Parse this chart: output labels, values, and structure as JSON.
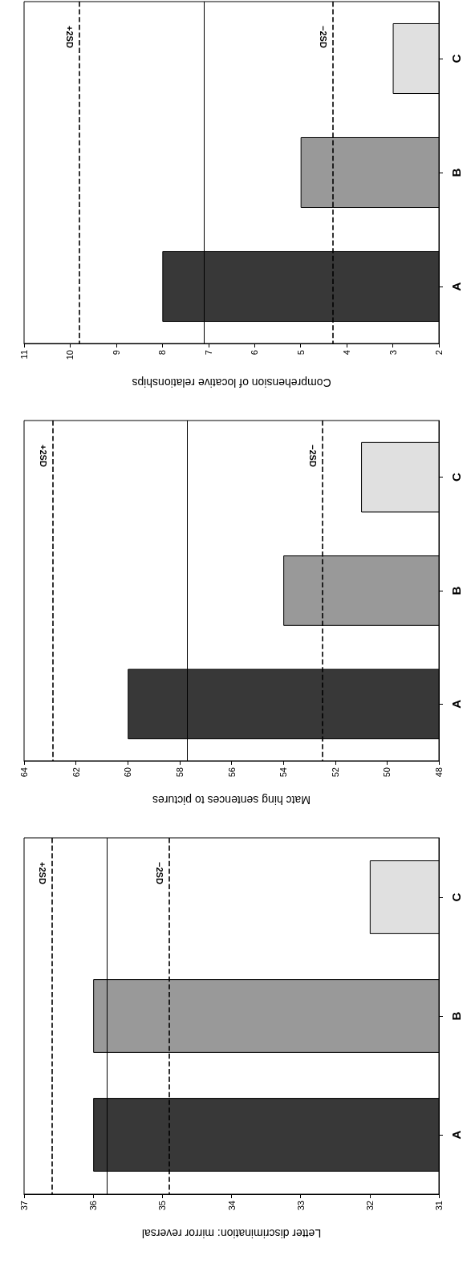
{
  "chart_data": [
    {
      "type": "bar",
      "orientation": "horizontal",
      "xlabel": "Comprehension of locative relationships",
      "categories": [
        "C",
        "B",
        "A"
      ],
      "values": [
        3,
        5,
        8
      ],
      "colors": [
        "#e0e0e0",
        "#999999",
        "#383838"
      ],
      "xlim": [
        11,
        2
      ],
      "xticks": [
        11,
        10,
        9,
        8,
        7,
        6,
        5,
        4,
        3,
        2
      ],
      "ref_lines": [
        {
          "axis": "x",
          "value": 9.8,
          "label": "+2SD",
          "line_style": "dashed",
          "color": "#000000"
        },
        {
          "axis": "x",
          "value": 7.1,
          "line_style": "solid",
          "color": "#000000"
        },
        {
          "axis": "x",
          "value": 4.3,
          "label": "−2SD",
          "line_style": "dashed",
          "color": "#000000"
        }
      ]
    },
    {
      "type": "bar",
      "orientation": "horizontal",
      "xlabel": "Matc hing sentences to pictures",
      "categories": [
        "C",
        "B",
        "A"
      ],
      "values": [
        51,
        54,
        60
      ],
      "colors": [
        "#e0e0e0",
        "#999999",
        "#383838"
      ],
      "xlim": [
        64,
        48
      ],
      "xticks": [
        64,
        62,
        60,
        58,
        56,
        54,
        52,
        50,
        48
      ],
      "ref_lines": [
        {
          "axis": "x",
          "value": 62.9,
          "label": "+2SD",
          "line_style": "dashed",
          "color": "#000000"
        },
        {
          "axis": "x",
          "value": 57.7,
          "line_style": "solid",
          "color": "#000000"
        },
        {
          "axis": "x",
          "value": 52.5,
          "label": "−2SD",
          "line_style": "dashed",
          "color": "#000000"
        }
      ]
    },
    {
      "type": "bar",
      "orientation": "horizontal",
      "xlabel": "Letter discrimination: mirror reversal",
      "categories": [
        "C",
        "B",
        "A"
      ],
      "values": [
        32,
        36,
        36
      ],
      "colors": [
        "#e0e0e0",
        "#999999",
        "#383838"
      ],
      "xlim": [
        37,
        31
      ],
      "xticks": [
        37,
        36,
        35,
        34,
        33,
        32,
        31
      ],
      "ref_lines": [
        {
          "axis": "x",
          "value": 36.6,
          "label": "+2SD",
          "line_style": "dashed",
          "color": "#000000"
        },
        {
          "axis": "x",
          "value": 35.8,
          "line_style": "solid",
          "color": "#000000"
        },
        {
          "axis": "x",
          "value": 34.9,
          "label": "−2SD",
          "line_style": "dashed",
          "color": "#000000"
        }
      ]
    }
  ]
}
